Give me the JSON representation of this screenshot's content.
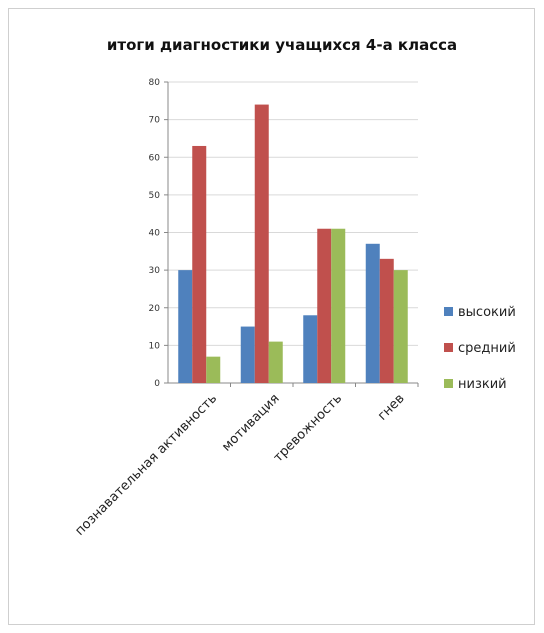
{
  "chart_data": {
    "type": "bar",
    "title": "итоги диагностики учащихся 4-а класса",
    "categories": [
      "познавательная активность",
      "мотивация",
      "тревожность",
      "гнев"
    ],
    "series": [
      {
        "name": "высокий",
        "color": "#4f81bd",
        "values": [
          30,
          15,
          18,
          37
        ]
      },
      {
        "name": "средний",
        "color": "#c0504d",
        "values": [
          63,
          74,
          41,
          33
        ]
      },
      {
        "name": "низкий",
        "color": "#9bbb59",
        "values": [
          7,
          11,
          41,
          30
        ]
      }
    ],
    "ylim": [
      0,
      80
    ],
    "yticks": [
      0,
      10,
      20,
      30,
      40,
      50,
      60,
      70,
      80
    ],
    "grid": true,
    "legend": "right"
  }
}
